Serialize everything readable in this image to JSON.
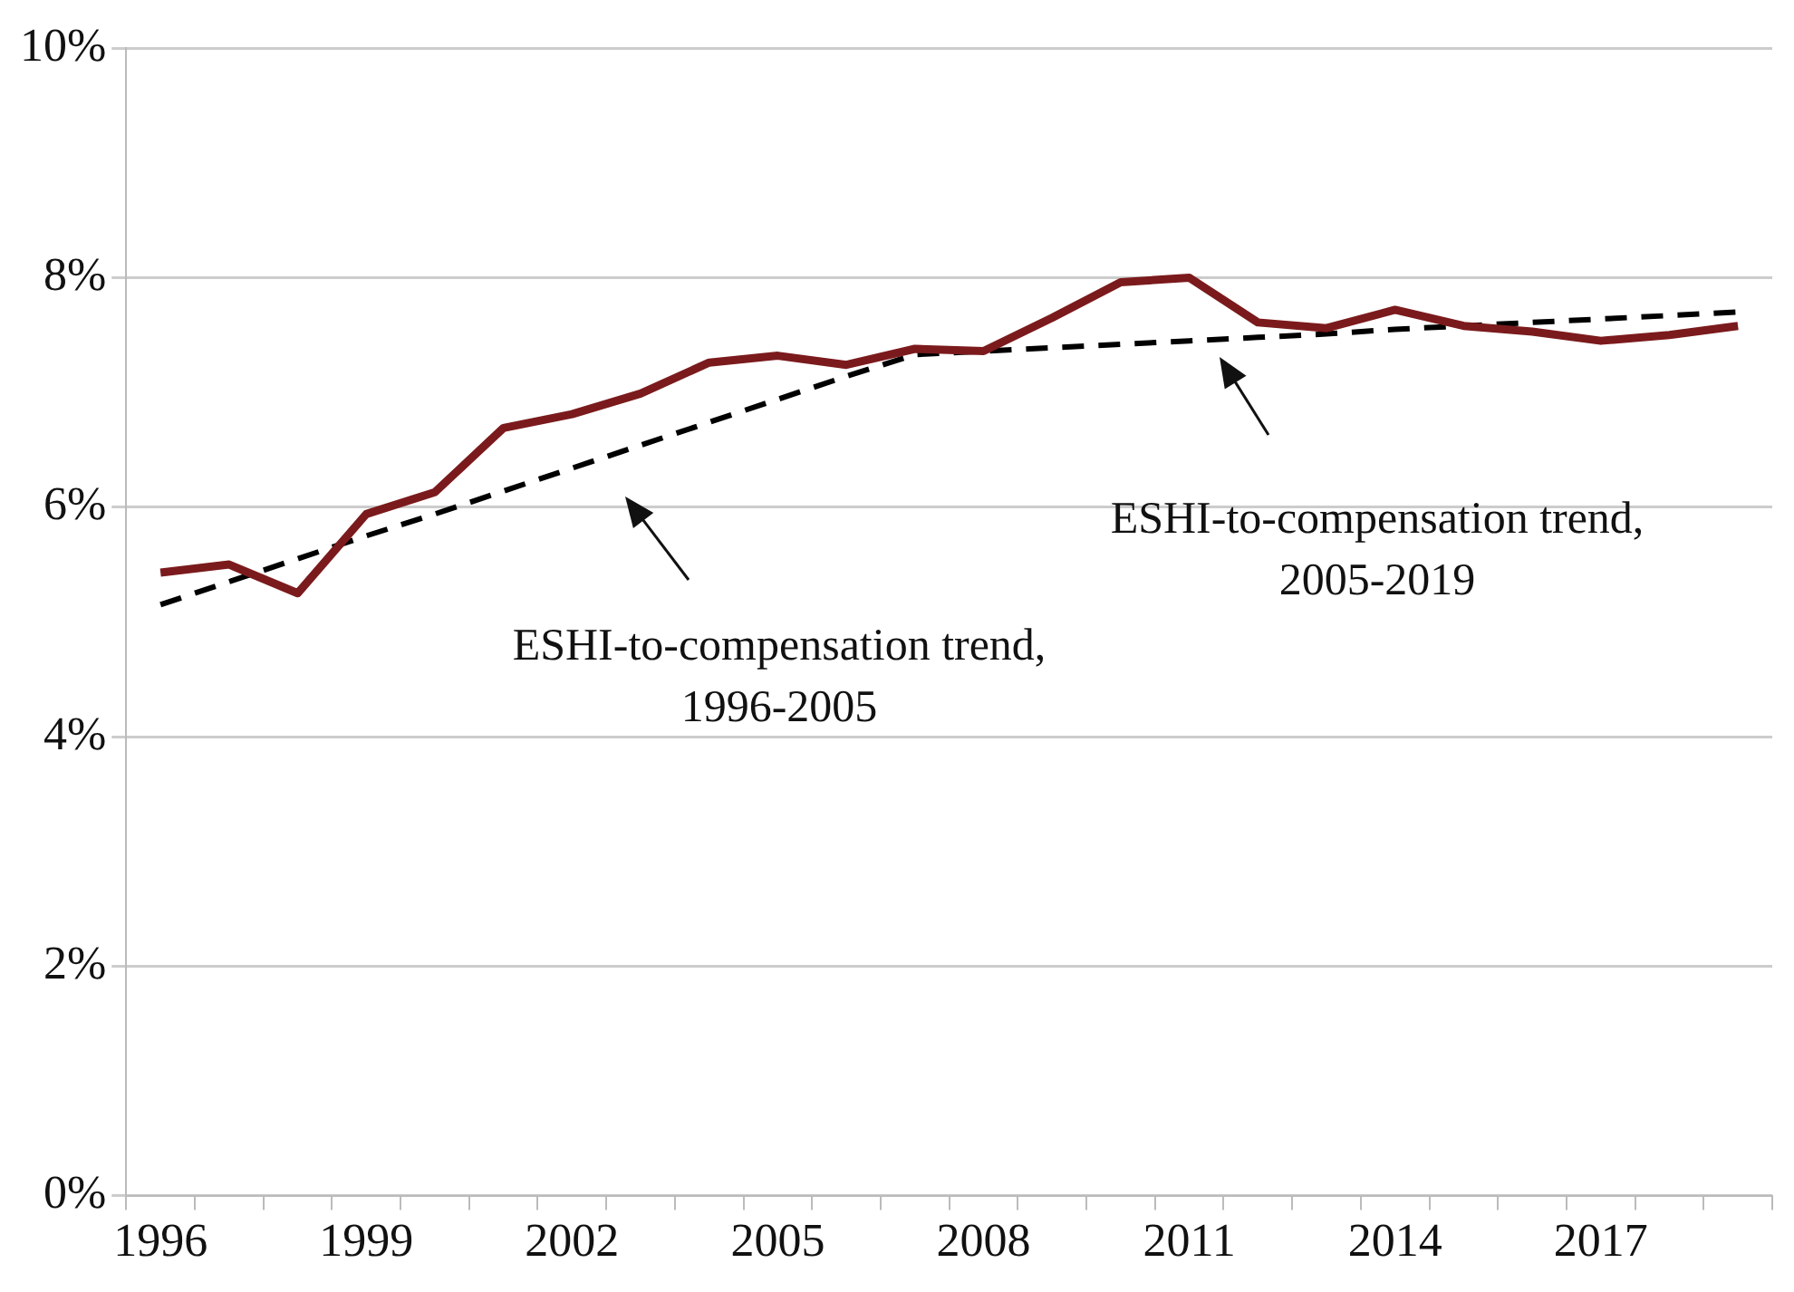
{
  "chart_data": {
    "type": "line",
    "categories": [
      "1996",
      null,
      null,
      "1999",
      null,
      null,
      "2002",
      null,
      null,
      "2005",
      null,
      null,
      "2008",
      null,
      null,
      "2011",
      null,
      null,
      "2014",
      null,
      null,
      "2017",
      null,
      null
    ],
    "series": [
      {
        "color": "#7b1a1c",
        "values": [
          5.43,
          5.5,
          5.25,
          5.94,
          6.13,
          6.69,
          6.81,
          6.99,
          7.26,
          7.32,
          7.24,
          7.38,
          7.36,
          7.65,
          7.96,
          8.0,
          7.61,
          7.56,
          7.72,
          7.58,
          7.53,
          7.45,
          7.5,
          7.58
        ]
      },
      {
        "color": "#000000",
        "line_style": "dashed",
        "values": [
          5.15,
          5.35,
          5.55,
          5.75,
          5.94,
          6.14,
          6.34,
          6.54,
          6.74,
          6.94,
          7.14,
          7.33,
          7.36,
          7.39,
          7.42,
          7.45,
          7.48,
          7.51,
          7.55,
          7.58,
          7.61,
          7.64,
          7.67,
          7.7
        ]
      }
    ],
    "ylim": [
      0,
      10
    ],
    "yticks": [
      {
        "value": 0,
        "label": "0%"
      },
      {
        "value": 2,
        "label": "2%"
      },
      {
        "value": 4,
        "label": "4%"
      },
      {
        "value": 6,
        "label": "6%"
      },
      {
        "value": 8,
        "label": "8%"
      },
      {
        "value": 10,
        "label": "10%"
      }
    ],
    "grid": "y",
    "legend": false,
    "marker": "none",
    "annotations": [
      "ESHI-to-compensation trend,\n1996-2005",
      "ESHI-to-compensation trend,\n2005-2019"
    ]
  }
}
